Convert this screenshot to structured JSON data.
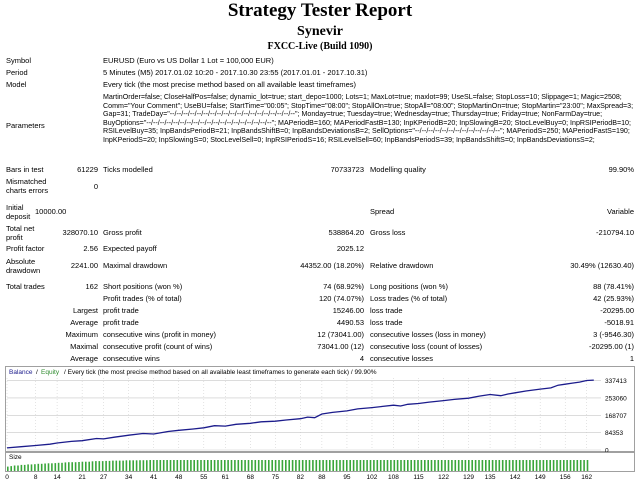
{
  "header": {
    "title": "Strategy Tester Report",
    "ea_name": "Synevir",
    "server": "FXCC-Live (Build 1090)"
  },
  "info": {
    "symbol_label": "Symbol",
    "symbol_value": "EURUSD (Euro vs US Dollar 1 Lot = 100,000 EUR)",
    "period_label": "Period",
    "period_value": "5 Minutes (M5) 2017.01.02 10:20 - 2017.10.30 23:55 (2017.01.01 - 2017.10.31)",
    "model_label": "Model",
    "model_value": "Every tick (the most precise method based on all available least timeframes)",
    "parameters_label": "Parameters",
    "parameters_value": "MartinOrder=false; CloseHalfPos=false; dynamic_lot=true; start_depo=1000; Lots=1; MaxLot=true; maxlot=99; UseSL=false; StopLoss=10; Slippage=1; Magic=2508; Comm=\"Your Comment\"; UseBU=false; StartTime=\"00:05\"; StopTime=\"08:00\"; StopAllOn=true; StopAll=\"08:00\"; StopMartinOn=true; StopMartin=\"23:00\"; MaxSpread=3; Gap=31; TradeDay=\"--/--/--/--/--/--/--/--/--/--/--/--/--/--/--/--/--/--/--\"; Monday=true; Tuesday=true; Wednesday=true; Thursday=true; Friday=true; NonFarmDay=true; BuyOptions=\"--/--/--/--/--/--/--/--/--/--/--/--/--/--/--/--/--/--/--\"; MAPeriodB=160; MAPeriodFastB=130; InpKPeriodB=20; InpSlowingB=20; StocLevelBuy=0; InpRSIPeriodB=10; RSILevelBuy=35; InpBandsPeriodB=21; InpBandsShiftB=0; InpBandsDeviationsB=2; SellOptions=\"--/--/--/--/--/--/--/--/--/--/--/--/--\"; MAPeriodS=250; MAPeriodFastS=190; InpKPeriodS=20; InpSlowingS=0; StocLevelSell=0; InpRSIPeriodS=16; RSILevelSell=60; InpBandsPeriodS=39; InpBandsShiftS=0; InpBandsDeviationsS=2;"
  },
  "stats": {
    "bars_label": "Bars in test",
    "bars_value": "61229",
    "ticks_label": "Ticks modelled",
    "ticks_value": "70733723",
    "quality_label": "Modelling quality",
    "quality_value": "99.90%",
    "mismatch_label_1": "Mismatched",
    "mismatch_label_2": "charts errors",
    "mismatch_value": "0",
    "initial_label_1": "Initial",
    "initial_label_2": "deposit",
    "initial_value": "10000.00",
    "spread_label": "Spread",
    "spread_value": "Variable",
    "net_label_1": "Total net",
    "net_label_2": "profit",
    "net_value": "328070.10",
    "gross_profit_label": "Gross profit",
    "gross_profit_value": "538864.20",
    "gross_loss_label": "Gross loss",
    "gross_loss_value": "-210794.10",
    "pf_label": "Profit factor",
    "pf_value": "2.56",
    "ep_label": "Expected payoff",
    "ep_value": "2025.12",
    "abs_dd_label_1": "Absolute",
    "abs_dd_label_2": "drawdown",
    "abs_dd_value": "2241.00",
    "max_dd_label": "Maximal drawdown",
    "max_dd_value": "44352.00 (18.20%)",
    "rel_dd_label": "Relative drawdown",
    "rel_dd_value": "30.49% (12630.40)",
    "trades_label": "Total trades",
    "trades_value": "162",
    "short_label": "Short positions (won %)",
    "short_value": "74 (68.92%)",
    "long_label": "Long positions (won %)",
    "long_value": "88 (78.41%)",
    "pt_label": "Profit trades (% of total)",
    "pt_value": "120 (74.07%)",
    "lt_label": "Loss trades (% of total)",
    "lt_value": "42 (25.93%)",
    "largest_label": "Largest",
    "largest_pt_label": "profit trade",
    "largest_pt_value": "15246.00",
    "largest_lt_label": "loss trade",
    "largest_lt_value": "-20295.00",
    "average_label": "Average",
    "average_pt_label": "profit trade",
    "average_pt_value": "4490.53",
    "average_lt_label": "loss trade",
    "average_lt_value": "-5018.91",
    "maximum_label": "Maximum",
    "max_cw_label": "consecutive wins (profit in money)",
    "max_cw_value": "12 (73041.00)",
    "max_cl_label": "consecutive losses (loss in money)",
    "max_cl_value": "3 (-9546.30)",
    "maximal_label": "Maximal",
    "maxl_cp_label": "consecutive profit (count of wins)",
    "maxl_cp_value": "73041.00 (12)",
    "maxl_cl_label": "consecutive loss (count of losses)",
    "maxl_cl_value": "-20295.00 (1)",
    "avg2_label": "Average",
    "avg_cw_label": "consecutive wins",
    "avg_cw_value": "4",
    "avg_cl_label": "consecutive losses",
    "avg_cl_value": "1"
  },
  "chart_data": {
    "type": "line",
    "legend_balance": "Balance",
    "legend_sep": "/",
    "legend_equity": "Equity",
    "legend_rest": "/ Every tick (the most precise method based on all available least timeframes to generate each tick) / 99.90%",
    "y_ticks": [
      "337413",
      "253060",
      "168707",
      "84353",
      "0"
    ],
    "y_tick_values": [
      337413,
      253060,
      168707,
      84353,
      0
    ],
    "ylim": [
      0,
      350000
    ],
    "xlim": [
      0,
      166
    ],
    "x_ticks": [
      "0",
      "8",
      "14",
      "21",
      "27",
      "34",
      "41",
      "48",
      "55",
      "61",
      "68",
      "75",
      "82",
      "88",
      "95",
      "102",
      "108",
      "115",
      "122",
      "129",
      "135",
      "142",
      "149",
      "156",
      "162"
    ],
    "x_tick_values": [
      0,
      8,
      14,
      21,
      27,
      34,
      41,
      48,
      55,
      61,
      68,
      75,
      82,
      88,
      95,
      102,
      108,
      115,
      122,
      129,
      135,
      142,
      149,
      156,
      162
    ],
    "size_label": "Size",
    "colors": {
      "line": "#1c1c8c",
      "grid": "#c8c8c8",
      "size_bars": "#3aa63a",
      "legend_balance": "#1c1c8c",
      "legend_equity": "#2e8b2e"
    },
    "balance": [
      [
        0,
        10000
      ],
      [
        4,
        16000
      ],
      [
        8,
        22000
      ],
      [
        12,
        28000
      ],
      [
        14,
        34000
      ],
      [
        18,
        42000
      ],
      [
        21,
        45000
      ],
      [
        25,
        56000
      ],
      [
        27,
        54000
      ],
      [
        30,
        62000
      ],
      [
        34,
        72000
      ],
      [
        38,
        80000
      ],
      [
        41,
        78000
      ],
      [
        45,
        90000
      ],
      [
        48,
        96000
      ],
      [
        52,
        102000
      ],
      [
        55,
        108000
      ],
      [
        58,
        118000
      ],
      [
        61,
        116000
      ],
      [
        64,
        125000
      ],
      [
        68,
        130000
      ],
      [
        71,
        137000
      ],
      [
        75,
        140000
      ],
      [
        78,
        146000
      ],
      [
        82,
        152000
      ],
      [
        84,
        160000
      ],
      [
        86,
        157000
      ],
      [
        88,
        175000
      ],
      [
        91,
        183000
      ],
      [
        95,
        190000
      ],
      [
        98,
        200000
      ],
      [
        102,
        206000
      ],
      [
        105,
        212000
      ],
      [
        108,
        218000
      ],
      [
        110,
        214000
      ],
      [
        112,
        222000
      ],
      [
        115,
        226000
      ],
      [
        118,
        233000
      ],
      [
        122,
        240000
      ],
      [
        125,
        246000
      ],
      [
        129,
        252000
      ],
      [
        132,
        262000
      ],
      [
        135,
        270000
      ],
      [
        138,
        264000
      ],
      [
        140,
        272000
      ],
      [
        142,
        278000
      ],
      [
        145,
        287000
      ],
      [
        149,
        296000
      ],
      [
        152,
        302000
      ],
      [
        154,
        315000
      ],
      [
        156,
        320000
      ],
      [
        158,
        325000
      ],
      [
        160,
        330000
      ],
      [
        162,
        338000
      ],
      [
        164,
        340000
      ]
    ],
    "sizes": [
      0.4,
      0.45,
      0.5,
      0.5,
      0.55,
      0.55,
      0.6,
      0.6,
      0.62,
      0.65,
      0.65,
      0.68,
      0.7,
      0.7,
      0.72,
      0.75,
      0.75,
      0.78,
      0.8,
      0.8,
      0.8,
      0.82,
      0.85,
      0.85,
      0.85,
      0.88,
      0.9,
      0.9,
      0.9,
      0.92,
      0.92,
      0.95,
      0.95,
      0.95,
      0.95,
      0.97,
      0.97,
      0.97,
      0.97,
      0.98,
      0.98,
      0.98,
      1,
      1,
      1,
      1,
      1,
      1,
      1,
      1,
      1,
      1,
      1,
      1,
      1,
      1,
      1,
      1,
      1,
      1,
      1,
      1,
      1,
      1,
      1,
      1,
      1,
      1,
      1,
      1,
      1,
      1,
      1,
      1,
      1,
      1,
      1,
      1,
      1,
      1,
      1,
      1,
      1,
      1,
      1,
      1,
      1,
      1,
      1,
      1,
      1,
      1,
      1,
      1,
      1,
      1,
      1,
      1,
      1,
      1,
      1,
      1,
      1,
      1,
      1,
      1,
      1,
      1,
      1,
      1,
      1,
      1,
      1,
      1,
      1,
      1,
      1,
      1,
      1,
      1,
      1,
      1,
      1,
      1,
      1,
      1,
      1,
      1,
      1,
      1,
      1,
      1,
      1,
      1,
      1,
      1,
      1,
      1,
      1,
      1,
      1,
      1,
      1,
      1,
      1,
      1,
      1,
      1,
      1,
      1,
      1,
      1,
      1,
      1,
      1,
      1,
      1,
      1,
      1,
      1,
      1,
      1,
      1,
      1,
      1,
      1,
      1,
      1,
      1,
      1,
      1,
      1
    ]
  }
}
